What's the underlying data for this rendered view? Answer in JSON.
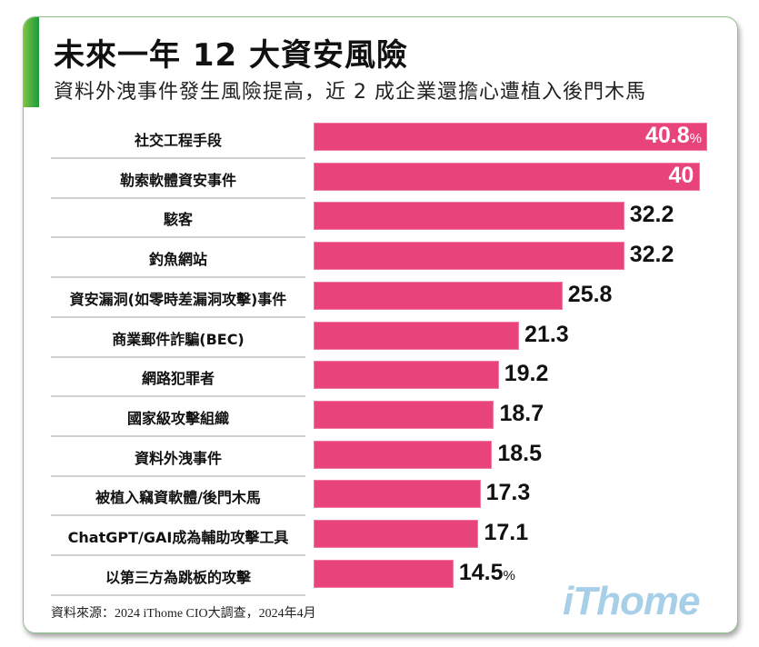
{
  "header": {
    "title": "未來一年 12 大資安風險",
    "subtitle": "資料外洩事件發生風險提高，近 2 成企業還擔心遭植入後門木馬"
  },
  "chart_data": {
    "type": "bar",
    "orientation": "horizontal",
    "categories": [
      "社交工程手段",
      "勒索軟體資安事件",
      "駭客",
      "釣魚網站",
      "資安漏洞(如零時差漏洞攻擊)事件",
      "商業郵件詐騙(BEC)",
      "網路犯罪者",
      "國家級攻擊組織",
      "資料外洩事件",
      "被植入竊資軟體/後門木馬",
      "ChatGPT/GAI成為輔助攻擊工具",
      "以第三方為跳板的攻擊"
    ],
    "values": [
      40.8,
      40,
      32.2,
      32.2,
      25.8,
      21.3,
      19.2,
      18.7,
      18.5,
      17.3,
      17.1,
      14.5
    ],
    "value_labels": [
      "40.8",
      "40",
      "32.2",
      "32.2",
      "25.8",
      "21.3",
      "19.2",
      "18.7",
      "18.5",
      "17.3",
      "17.1",
      "14.5"
    ],
    "unit": "%",
    "bar_color": "#e8437a",
    "grid": false
  },
  "footer": {
    "source": "資料來源：2024 iThome CIO大調查，2024年4月",
    "logo": "iThome"
  },
  "colors": {
    "accent": "#1a9a3a",
    "bar": "#e8437a",
    "logo": "#a8cfe8"
  }
}
